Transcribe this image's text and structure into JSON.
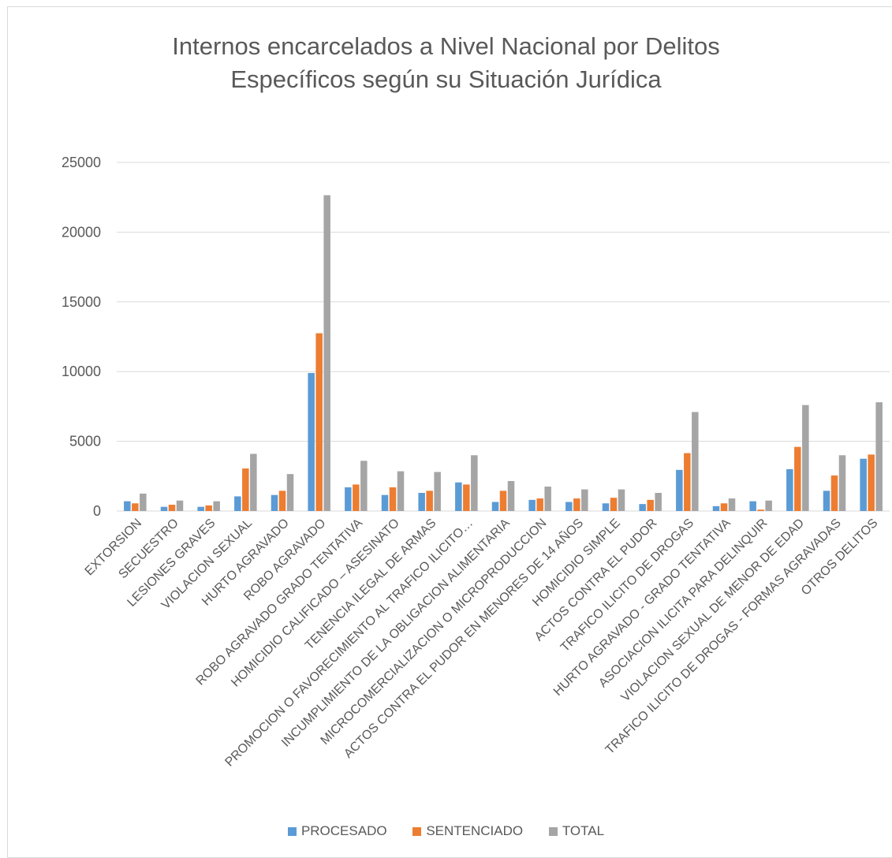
{
  "chart_data": {
    "type": "bar",
    "title_line1": "Internos encarcelados a Nivel Nacional por Delitos",
    "title_line2": "Específicos según su Situación Jurídica",
    "xlabel": "",
    "ylabel": "",
    "ylim": [
      0,
      25000
    ],
    "yticks": [
      0,
      5000,
      10000,
      15000,
      20000,
      25000
    ],
    "grid": true,
    "legend_position": "bottom",
    "categories": [
      "EXTORSION",
      "SECUESTRO",
      "LESIONES GRAVES",
      "VIOLACION SEXUAL",
      "HURTO AGRAVADO",
      "ROBO AGRAVADO",
      "ROBO AGRAVADO GRADO TENTATIVA",
      "HOMICIDIO CALIFICADO – ASESINATO",
      "TENENCIA ILEGAL DE ARMAS",
      "PROMOCION O FAVORECIMIENTO AL TRAFICO ILICITO…",
      "INCUMPLIMIENTO DE LA OBLIGACION ALIMENTARIA",
      "MICROCOMERCIALIZACION O MICROPRODUCCION",
      "ACTOS CONTRA EL PUDOR EN MENORES DE 14 AÑOS",
      "HOMICIDIO SIMPLE",
      "ACTOS CONTRA EL PUDOR",
      "TRAFICO ILICITO DE DROGAS",
      "HURTO AGRAVADO - GRADO TENTATIVA",
      "ASOCIACION ILICITA PARA DELINQUIR",
      "VIOLACION SEXUAL DE MENOR DE EDAD",
      "TRAFICO ILICITO DE DROGAS - FORMAS AGRAVADAS",
      "OTROS DELITOS"
    ],
    "series": [
      {
        "name": "PROCESADO",
        "color": "#5b9bd5",
        "values": [
          700,
          300,
          300,
          1050,
          1150,
          9900,
          1700,
          1150,
          1300,
          2050,
          650,
          800,
          650,
          550,
          500,
          2950,
          350,
          700,
          3000,
          1450,
          3750
        ]
      },
      {
        "name": "SENTENCIADO",
        "color": "#ed7d31",
        "values": [
          550,
          450,
          400,
          3050,
          1450,
          12750,
          1900,
          1700,
          1450,
          1900,
          1450,
          900,
          900,
          950,
          800,
          4150,
          550,
          100,
          4600,
          2550,
          4050
        ]
      },
      {
        "name": "TOTAL",
        "color": "#a5a5a5",
        "values": [
          1250,
          750,
          700,
          4100,
          2650,
          22650,
          3600,
          2850,
          2800,
          4000,
          2150,
          1750,
          1550,
          1550,
          1300,
          7100,
          900,
          750,
          7600,
          4000,
          7800
        ]
      }
    ]
  }
}
